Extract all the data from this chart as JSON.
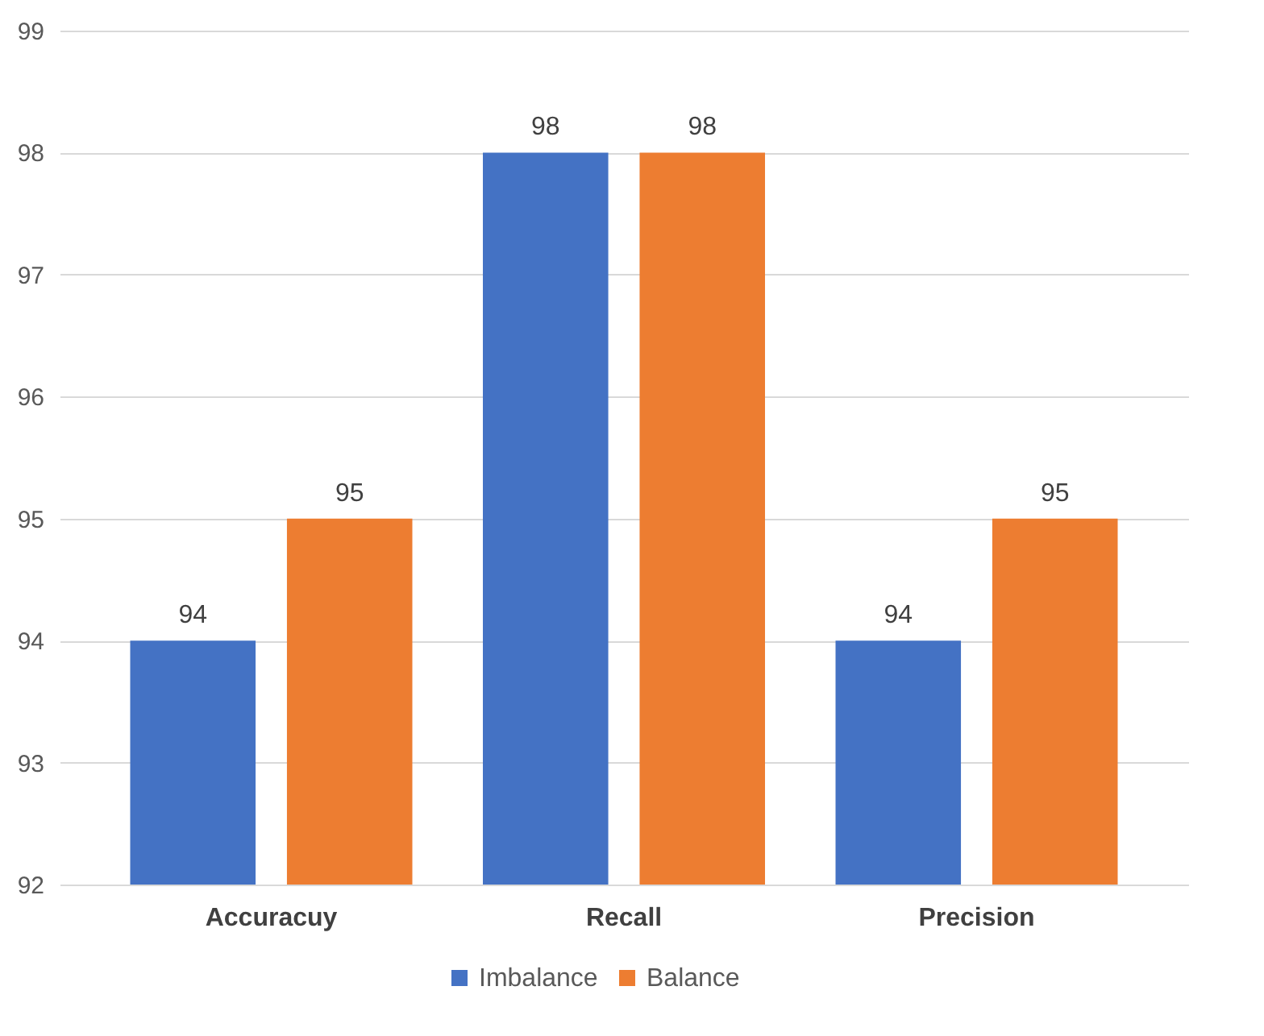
{
  "chart_data": {
    "type": "bar",
    "categories": [
      "Accuracuy",
      "Recall",
      "Precision"
    ],
    "series": [
      {
        "name": "Imbalance",
        "color": "#4472c4",
        "values": [
          94,
          98,
          94
        ]
      },
      {
        "name": "Balance",
        "color": "#ed7d31",
        "values": [
          95,
          98,
          95
        ]
      }
    ],
    "ylim": [
      92,
      99
    ],
    "yticks": [
      92,
      93,
      94,
      95,
      96,
      97,
      98,
      99
    ],
    "grid": "y",
    "legend": "bottom",
    "data_labels": true
  }
}
